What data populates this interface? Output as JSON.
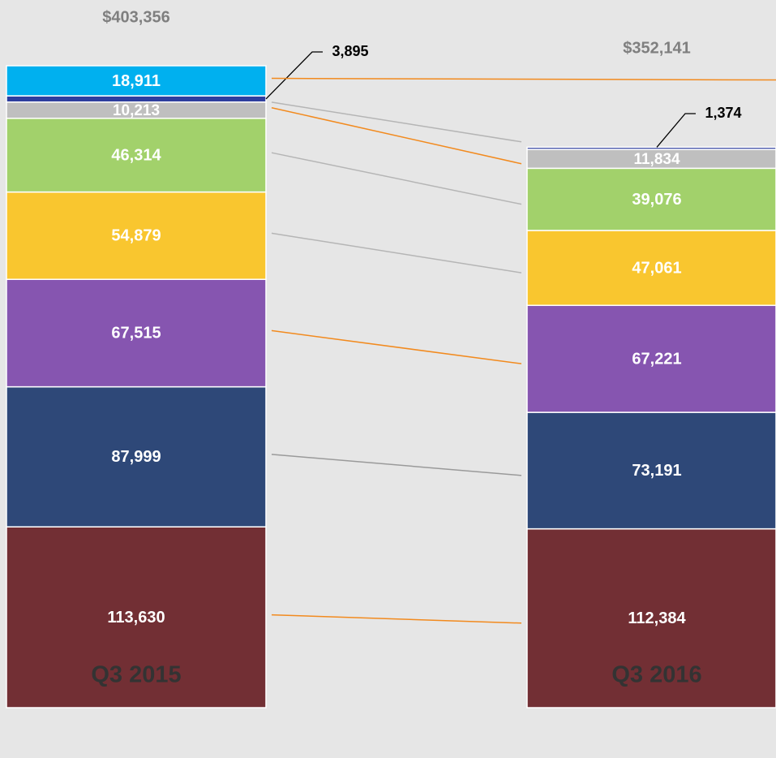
{
  "chart_data": {
    "type": "stacked_bar",
    "categories": [
      "Q3 2015",
      "Q3 2016"
    ],
    "totals": [
      403356,
      352141
    ],
    "totals_labels": [
      "$403,356",
      "$352,141"
    ],
    "series": [
      {
        "color": "#722f34",
        "line_color": "#f28a1e",
        "values": [
          113630,
          112384
        ],
        "value_labels": [
          "113,630",
          "112,384"
        ]
      },
      {
        "color": "#2e4878",
        "line_color": "#9a9a9a",
        "values": [
          87999,
          73191
        ],
        "value_labels": [
          "87,999",
          "73,191"
        ]
      },
      {
        "color": "#8655b0",
        "line_color": "#f28a1e",
        "values": [
          67515,
          67221
        ],
        "value_labels": [
          "67,515",
          "67,221"
        ]
      },
      {
        "color": "#f9c62f",
        "line_color": "#b5b5b5",
        "values": [
          54879,
          47061
        ],
        "value_labels": [
          "54,879",
          "47,061"
        ]
      },
      {
        "color": "#a2d16b",
        "line_color": "#b5b5b5",
        "values": [
          46314,
          39076
        ],
        "value_labels": [
          "46,314",
          "39,076"
        ]
      },
      {
        "color": "#bfbfbf",
        "line_color": "#f28a1e",
        "values": [
          10213,
          11834
        ],
        "value_labels": [
          "10,213",
          "11,834"
        ]
      },
      {
        "color": "#2e3e9e",
        "line_color": "#b5b5b5",
        "values": [
          3895,
          1374
        ],
        "value_labels": [
          "3,895",
          "1,374"
        ]
      },
      {
        "color": "#00b0ef",
        "line_color": "#f28a1e",
        "values": [
          18911,
          null
        ],
        "value_labels": [
          "18,911",
          null
        ]
      }
    ]
  }
}
